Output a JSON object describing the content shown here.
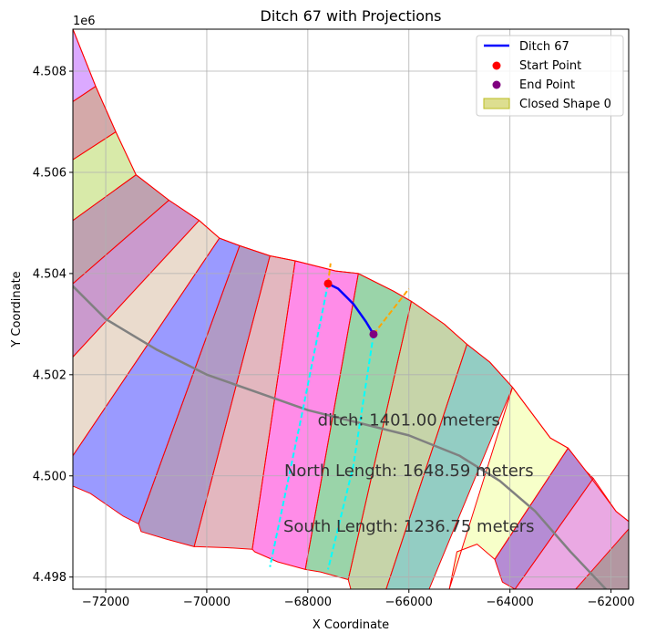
{
  "chart_data": {
    "type": "map",
    "title": "Ditch 67 with Projections",
    "xlabel": "X Coordinate",
    "ylabel": "Y Coordinate",
    "y_offset_label": "1e6",
    "xlim": [
      -72650,
      -61650
    ],
    "ylim": [
      4497760,
      4508830
    ],
    "grid": true,
    "x_ticks": [
      {
        "value": -72000,
        "label": "−72000"
      },
      {
        "value": -70000,
        "label": "−70000"
      },
      {
        "value": -68000,
        "label": "−68000"
      },
      {
        "value": -66000,
        "label": "−66000"
      },
      {
        "value": -64000,
        "label": "−64000"
      },
      {
        "value": -62000,
        "label": "−62000"
      }
    ],
    "y_ticks": [
      {
        "value": 4498000,
        "label": "4.498"
      },
      {
        "value": 4500000,
        "label": "4.500"
      },
      {
        "value": 4502000,
        "label": "4.502"
      },
      {
        "value": 4504000,
        "label": "4.504"
      },
      {
        "value": 4506000,
        "label": "4.506"
      },
      {
        "value": 4508000,
        "label": "4.508"
      }
    ],
    "legend": {
      "placement": "top-right",
      "entries": [
        {
          "label": "Ditch 67",
          "kind": "line",
          "color": "#0000ff"
        },
        {
          "label": "Start Point",
          "kind": "marker",
          "color": "#ff0000"
        },
        {
          "label": "End Point",
          "kind": "marker",
          "color": "#800080"
        },
        {
          "label": "Closed Shape 0",
          "kind": "patch",
          "color": "#bcbd22"
        }
      ]
    },
    "fields": [
      {
        "color": "#b040ff",
        "points": [
          [
            -72650,
            4508830
          ],
          [
            -72200,
            4507700
          ],
          [
            -72650,
            4507400
          ]
        ]
      },
      {
        "color": "#a04040",
        "points": [
          [
            -72650,
            4507400
          ],
          [
            -72200,
            4507700
          ],
          [
            -71800,
            4506800
          ],
          [
            -72650,
            4506250
          ]
        ]
      },
      {
        "color": "#a8d040",
        "points": [
          [
            -72650,
            4506250
          ],
          [
            -71800,
            4506800
          ],
          [
            -71400,
            4505950
          ],
          [
            -72650,
            4505050
          ]
        ]
      },
      {
        "color": "#703050",
        "points": [
          [
            -72650,
            4505050
          ],
          [
            -71400,
            4505950
          ],
          [
            -70750,
            4505450
          ],
          [
            -72650,
            4503800
          ]
        ]
      },
      {
        "color": "#8a2090",
        "points": [
          [
            -72650,
            4503800
          ],
          [
            -70750,
            4505450
          ],
          [
            -70150,
            4505050
          ],
          [
            -72650,
            4502350
          ]
        ]
      },
      {
        "color": "#d0b090",
        "points": [
          [
            -72650,
            4502350
          ],
          [
            -70150,
            4505050
          ],
          [
            -69750,
            4504700
          ],
          [
            -72650,
            4500400
          ]
        ]
      },
      {
        "color": "#2020ff",
        "points": [
          [
            -72650,
            4500400
          ],
          [
            -69750,
            4504700
          ],
          [
            -69350,
            4504550
          ],
          [
            -71350,
            4499050
          ],
          [
            -71650,
            4499200
          ],
          [
            -72300,
            4499650
          ],
          [
            -72650,
            4499800
          ]
        ]
      },
      {
        "color": "#502080",
        "points": [
          [
            -71350,
            4499050
          ],
          [
            -69350,
            4504550
          ],
          [
            -68750,
            4504350
          ],
          [
            -70250,
            4498600
          ],
          [
            -70800,
            4498750
          ],
          [
            -71300,
            4498900
          ]
        ]
      },
      {
        "color": "#c06070",
        "points": [
          [
            -70250,
            4498600
          ],
          [
            -68750,
            4504350
          ],
          [
            -68250,
            4504250
          ],
          [
            -69100,
            4498550
          ],
          [
            -69600,
            4498580
          ],
          [
            -70200,
            4498600
          ]
        ]
      },
      {
        "color": "#ff00cc",
        "points": [
          [
            -69100,
            4498550
          ],
          [
            -68250,
            4504250
          ],
          [
            -67450,
            4504050
          ],
          [
            -67000,
            4504000
          ],
          [
            -68050,
            4498150
          ],
          [
            -68600,
            4498300
          ],
          [
            -69050,
            4498500
          ]
        ]
      },
      {
        "color": "#20a040",
        "points": [
          [
            -68050,
            4498150
          ],
          [
            -67000,
            4504000
          ],
          [
            -66300,
            4503650
          ],
          [
            -65950,
            4503450
          ],
          [
            -67200,
            4497950
          ],
          [
            -67750,
            4498100
          ]
        ]
      },
      {
        "color": "#80a040",
        "points": [
          [
            -67200,
            4497950
          ],
          [
            -65950,
            4503450
          ],
          [
            -65300,
            4503000
          ],
          [
            -64850,
            4502600
          ],
          [
            -66450,
            4497760
          ],
          [
            -67150,
            4497760
          ]
        ]
      },
      {
        "color": "#10907a",
        "points": [
          [
            -66450,
            4497760
          ],
          [
            -64850,
            4502600
          ],
          [
            -64400,
            4502250
          ],
          [
            -63950,
            4501750
          ],
          [
            -65600,
            4497760
          ],
          [
            -66400,
            4497760
          ]
        ]
      },
      {
        "color": "#eeff88",
        "points": [
          [
            -65200,
            4497760
          ],
          [
            -63950,
            4501750
          ],
          [
            -63200,
            4500750
          ],
          [
            -62850,
            4500550
          ],
          [
            -64300,
            4498350
          ],
          [
            -64650,
            4498650
          ],
          [
            -65050,
            4498500
          ]
        ]
      },
      {
        "color": "#5a00a0",
        "points": [
          [
            -64300,
            4498350
          ],
          [
            -62850,
            4500550
          ],
          [
            -62500,
            4500100
          ],
          [
            -62350,
            4499950
          ],
          [
            -63900,
            4497760
          ],
          [
            -64150,
            4497900
          ]
        ]
      },
      {
        "color": "#d040c0",
        "points": [
          [
            -63900,
            4497760
          ],
          [
            -62350,
            4499950
          ],
          [
            -61900,
            4499300
          ],
          [
            -61650,
            4499100
          ],
          [
            -61650,
            4497760
          ]
        ]
      },
      {
        "color": "#708050",
        "points": [
          [
            -62700,
            4497760
          ],
          [
            -61650,
            4498950
          ],
          [
            -61650,
            4497760
          ]
        ]
      }
    ],
    "boundary": [
      [
        -72650,
        4508830
      ],
      [
        -72200,
        4507700
      ],
      [
        -71800,
        4506800
      ],
      [
        -71400,
        4505950
      ],
      [
        -70750,
        4505450
      ],
      [
        -70150,
        4505050
      ],
      [
        -69750,
        4504700
      ],
      [
        -69350,
        4504550
      ],
      [
        -68750,
        4504350
      ],
      [
        -68250,
        4504250
      ],
      [
        -67450,
        4504050
      ],
      [
        -67000,
        4504000
      ],
      [
        -66300,
        4503650
      ],
      [
        -65950,
        4503450
      ],
      [
        -65300,
        4503000
      ],
      [
        -64850,
        4502600
      ],
      [
        -64400,
        4502250
      ],
      [
        -63950,
        4501750
      ],
      [
        -63200,
        4500750
      ],
      [
        -62850,
        4500550
      ],
      [
        -62500,
        4500100
      ],
      [
        -61900,
        4499300
      ],
      [
        -61650,
        4499100
      ]
    ],
    "road": [
      [
        -72650,
        4503750
      ],
      [
        -72000,
        4503100
      ],
      [
        -71000,
        4502500
      ],
      [
        -70000,
        4502000
      ],
      [
        -69000,
        4501650
      ],
      [
        -68000,
        4501300
      ],
      [
        -67000,
        4501050
      ],
      [
        -66000,
        4500800
      ],
      [
        -65000,
        4500400
      ],
      [
        -64200,
        4499900
      ],
      [
        -63500,
        4499300
      ],
      [
        -62800,
        4498500
      ],
      [
        -62100,
        4497760
      ]
    ],
    "ditch": [
      [
        -67600,
        4503800
      ],
      [
        -67400,
        4503700
      ],
      [
        -67100,
        4503400
      ],
      [
        -66850,
        4503050
      ],
      [
        -66700,
        4502800
      ]
    ],
    "start_point": [
      -67600,
      4503800
    ],
    "end_point": [
      -66700,
      4502800
    ],
    "projections": {
      "start_extension": {
        "color": "#ffa500",
        "points": [
          [
            -67600,
            4503800
          ],
          [
            -67550,
            4504200
          ]
        ]
      },
      "end_extension": {
        "color": "#ffa500",
        "points": [
          [
            -66700,
            4502800
          ],
          [
            -66000,
            4503700
          ]
        ]
      },
      "north_line": {
        "color": "#00ffff",
        "points": [
          [
            -67600,
            4503800
          ],
          [
            -68100,
            4501300
          ],
          [
            -68750,
            4498200
          ]
        ]
      },
      "south_line": {
        "color": "#00ffff",
        "points": [
          [
            -66700,
            4502800
          ],
          [
            -67100,
            4500200
          ],
          [
            -67600,
            4498150
          ]
        ]
      }
    },
    "annotations": [
      {
        "text": "ditch: 1401.00 meters",
        "x": -66000,
        "y": 4501000
      },
      {
        "text": "North Length: 1648.59 meters",
        "x": -66000,
        "y": 4500000
      },
      {
        "text": "South Length: 1236.75 meters",
        "x": -66000,
        "y": 4498900
      }
    ]
  }
}
